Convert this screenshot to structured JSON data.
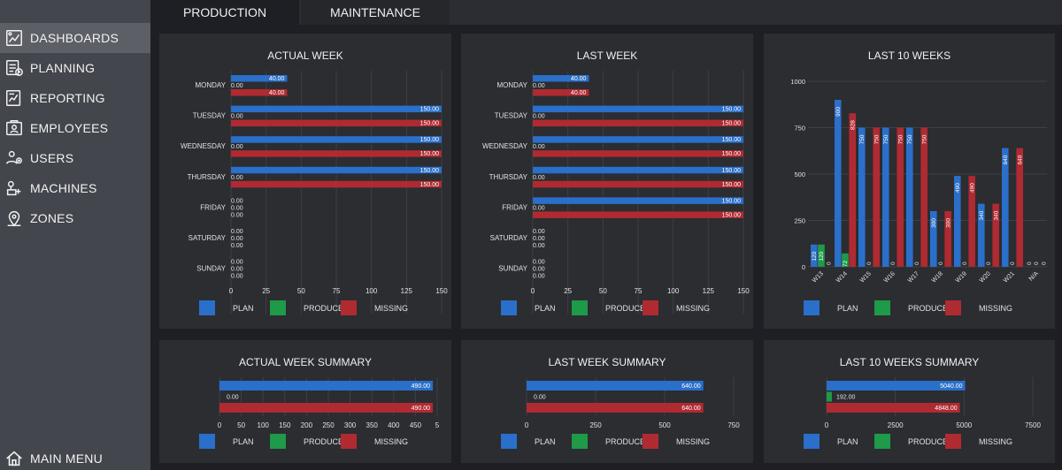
{
  "colors": {
    "plan": "#2a6fc9",
    "produced": "#1e9a48",
    "missing": "#b02a31",
    "grid": "#3d4046",
    "text": "#e2e2e2"
  },
  "tabs": [
    {
      "label": "PRODUCTION"
    },
    {
      "label": "MAINTENANCE"
    }
  ],
  "sidebar": {
    "items": [
      {
        "label": "DASHBOARDS",
        "icon": "dashboard-icon"
      },
      {
        "label": "PLANNING",
        "icon": "planning-icon"
      },
      {
        "label": "REPORTING",
        "icon": "reporting-icon"
      },
      {
        "label": "EMPLOYEES",
        "icon": "employees-icon"
      },
      {
        "label": "USERS",
        "icon": "users-icon"
      },
      {
        "label": "MACHINES",
        "icon": "machines-icon"
      },
      {
        "label": "ZONES",
        "icon": "zones-icon"
      }
    ],
    "footer": {
      "label": "MAIN MENU",
      "icon": "home-icon"
    }
  },
  "legend": {
    "plan": "PLAN",
    "produced": "PRODUCED",
    "missing": "MISSING"
  },
  "chart_data": [
    {
      "id": "actual_week",
      "type": "bar",
      "orientation": "horizontal",
      "title": "ACTUAL WEEK",
      "categories": [
        "MONDAY",
        "TUESDAY",
        "WEDNESDAY",
        "THURSDAY",
        "FRIDAY",
        "SATURDAY",
        "SUNDAY"
      ],
      "xlim": [
        0,
        150
      ],
      "xticks": [
        "0",
        "25",
        "50",
        "75",
        "100",
        "125",
        "150"
      ],
      "series": [
        {
          "name": "PLAN",
          "values": [
            40,
            150,
            150,
            150,
            0,
            0,
            0
          ],
          "labels": [
            "40.00",
            "150.00",
            "150.00",
            "150.00",
            "0.00",
            "0.00",
            "0.00"
          ]
        },
        {
          "name": "PRODUCED",
          "values": [
            0,
            0,
            0,
            0,
            0,
            0,
            0
          ],
          "labels": [
            "0.00",
            "0.00",
            "0.00",
            "0.00",
            "0.00",
            "0.00",
            "0.00"
          ]
        },
        {
          "name": "MISSING",
          "values": [
            40,
            150,
            150,
            150,
            0,
            0,
            0
          ],
          "labels": [
            "40.00",
            "150.00",
            "150.00",
            "150.00",
            "0.00",
            "0.00",
            "0.00"
          ]
        }
      ]
    },
    {
      "id": "last_week",
      "type": "bar",
      "orientation": "horizontal",
      "title": "LAST WEEK",
      "categories": [
        "MONDAY",
        "TUESDAY",
        "WEDNESDAY",
        "THURSDAY",
        "FRIDAY",
        "SATURDAY",
        "SUNDAY"
      ],
      "xlim": [
        0,
        150
      ],
      "xticks": [
        "0",
        "25",
        "50",
        "75",
        "100",
        "125",
        "150"
      ],
      "series": [
        {
          "name": "PLAN",
          "values": [
            40,
            150,
            150,
            150,
            150,
            0,
            0
          ],
          "labels": [
            "40.00",
            "150.00",
            "150.00",
            "150.00",
            "150.00",
            "0.00",
            "0.00"
          ]
        },
        {
          "name": "PRODUCED",
          "values": [
            0,
            0,
            0,
            0,
            0,
            0,
            0
          ],
          "labels": [
            "0.00",
            "0.00",
            "0.00",
            "0.00",
            "0.00",
            "0.00",
            "0.00"
          ]
        },
        {
          "name": "MISSING",
          "values": [
            40,
            150,
            150,
            150,
            150,
            0,
            0
          ],
          "labels": [
            "40.00",
            "150.00",
            "150.00",
            "150.00",
            "150.00",
            "0.00",
            "0.00"
          ]
        }
      ]
    },
    {
      "id": "last_10_weeks",
      "type": "bar",
      "orientation": "vertical",
      "title": "LAST 10 WEEKS",
      "categories": [
        "W13",
        "W14",
        "W15",
        "W16",
        "W17",
        "W18",
        "W19",
        "W20",
        "W21",
        "N/A"
      ],
      "ylim": [
        0,
        1000
      ],
      "yticks": [
        "0",
        "250",
        "500",
        "750",
        "1000"
      ],
      "series": [
        {
          "name": "PLAN",
          "values": [
            120,
            900,
            750,
            750,
            750,
            300,
            490,
            340,
            640,
            0
          ],
          "labels": [
            "120",
            "900",
            "750",
            "750",
            "750",
            "300",
            "490",
            "340",
            "640",
            "0"
          ]
        },
        {
          "name": "PRODUCED",
          "values": [
            120,
            72,
            0,
            0,
            0,
            0,
            0,
            0,
            0,
            0
          ],
          "labels": [
            "120",
            "72",
            "0",
            "0",
            "0",
            "0",
            "0",
            "0",
            "0",
            "0"
          ]
        },
        {
          "name": "MISSING",
          "values": [
            0,
            828,
            750,
            750,
            750,
            300,
            490,
            340,
            640,
            0
          ],
          "labels": [
            "0",
            "828",
            "750",
            "750",
            "750",
            "300",
            "490",
            "340",
            "640",
            "0"
          ]
        }
      ]
    },
    {
      "id": "actual_week_summary",
      "type": "bar",
      "orientation": "horizontal",
      "title": "ACTUAL WEEK SUMMARY",
      "categories": [
        ""
      ],
      "xlim": [
        0,
        500
      ],
      "xticks": [
        "0",
        "50",
        "100",
        "150",
        "200",
        "250",
        "300",
        "350",
        "400",
        "450",
        "5"
      ],
      "series": [
        {
          "name": "PLAN",
          "values": [
            490
          ],
          "labels": [
            "490.00"
          ]
        },
        {
          "name": "PRODUCED",
          "values": [
            0
          ],
          "labels": [
            "0.00"
          ]
        },
        {
          "name": "MISSING",
          "values": [
            490
          ],
          "labels": [
            "490.00"
          ]
        }
      ]
    },
    {
      "id": "last_week_summary",
      "type": "bar",
      "orientation": "horizontal",
      "title": "LAST WEEK SUMMARY",
      "categories": [
        ""
      ],
      "xlim": [
        0,
        750
      ],
      "xticks": [
        "0",
        "250",
        "500",
        "750"
      ],
      "series": [
        {
          "name": "PLAN",
          "values": [
            640
          ],
          "labels": [
            "640.00"
          ]
        },
        {
          "name": "PRODUCED",
          "values": [
            0
          ],
          "labels": [
            "0.00"
          ]
        },
        {
          "name": "MISSING",
          "values": [
            640
          ],
          "labels": [
            "640.00"
          ]
        }
      ]
    },
    {
      "id": "last_10_weeks_summary",
      "type": "bar",
      "orientation": "horizontal",
      "title": "LAST 10 WEEKS SUMMARY",
      "categories": [
        ""
      ],
      "xlim": [
        0,
        7500
      ],
      "xticks": [
        "0",
        "2500",
        "5000",
        "7500"
      ],
      "series": [
        {
          "name": "PLAN",
          "values": [
            5040
          ],
          "labels": [
            "5040.00"
          ]
        },
        {
          "name": "PRODUCED",
          "values": [
            192
          ],
          "labels": [
            "192.00"
          ]
        },
        {
          "name": "MISSING",
          "values": [
            4848
          ],
          "labels": [
            "4848.00"
          ]
        }
      ]
    }
  ]
}
